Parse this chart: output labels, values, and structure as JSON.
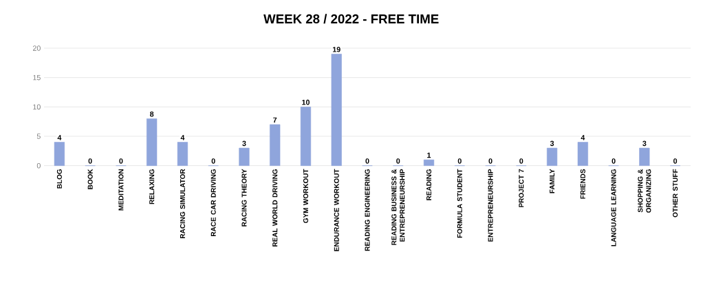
{
  "chart_data": {
    "type": "bar",
    "title": "WEEK 28 / 2022 - FREE TIME",
    "categories": [
      "BLOG",
      "BOOK",
      "MEDITATION",
      "RELAXING",
      "RACING SIMULATOR",
      "RACE CAR DRIVING",
      "RACING THEORY",
      "REAL WORLD DRIVING",
      "GYM WORKOUT",
      "ENDURANCE WORKOUT",
      "READING ENGINEERING",
      "READING BUSINESS & ENTREPRENEURSHIP",
      "READING",
      "FORMULA STUDENT",
      "ENTREPRENEURSHIP",
      "PROJECT 7",
      "FAMILY",
      "FRIENDS",
      "LANGUAGE LEARNING",
      "SHOPPING & ORGANIZING",
      "OTHER STUFF"
    ],
    "values": [
      4,
      0,
      0,
      8,
      4,
      0,
      3,
      7,
      10,
      19,
      0,
      0,
      1,
      0,
      0,
      0,
      3,
      4,
      0,
      3,
      0
    ],
    "color": "#8fa5dc",
    "ylim": [
      0,
      20
    ],
    "yticks": [
      0,
      5,
      10,
      15,
      20
    ],
    "grid": "y",
    "data_labels": true
  }
}
